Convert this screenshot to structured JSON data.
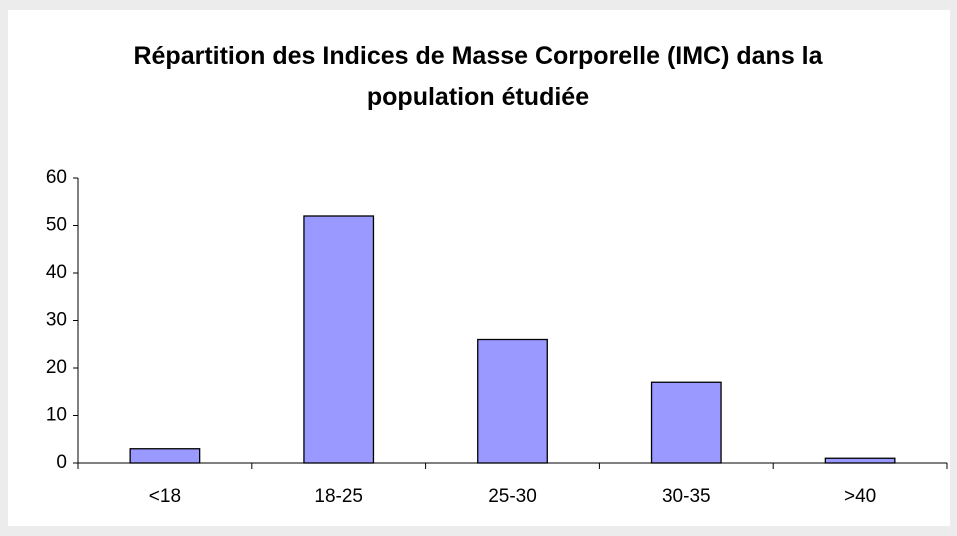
{
  "chart_data": {
    "type": "bar",
    "title": "Répartition des Indices de Masse Corporelle (IMC) dans la population étudiée",
    "categories": [
      "<18",
      "18-25",
      "25-30",
      "30-35",
      ">40"
    ],
    "values": [
      3,
      52,
      26,
      17,
      1
    ],
    "color": "#9999ff",
    "ylim": [
      0,
      60
    ],
    "yticks": [
      0,
      10,
      20,
      30,
      40,
      50,
      60
    ],
    "grid": false
  }
}
